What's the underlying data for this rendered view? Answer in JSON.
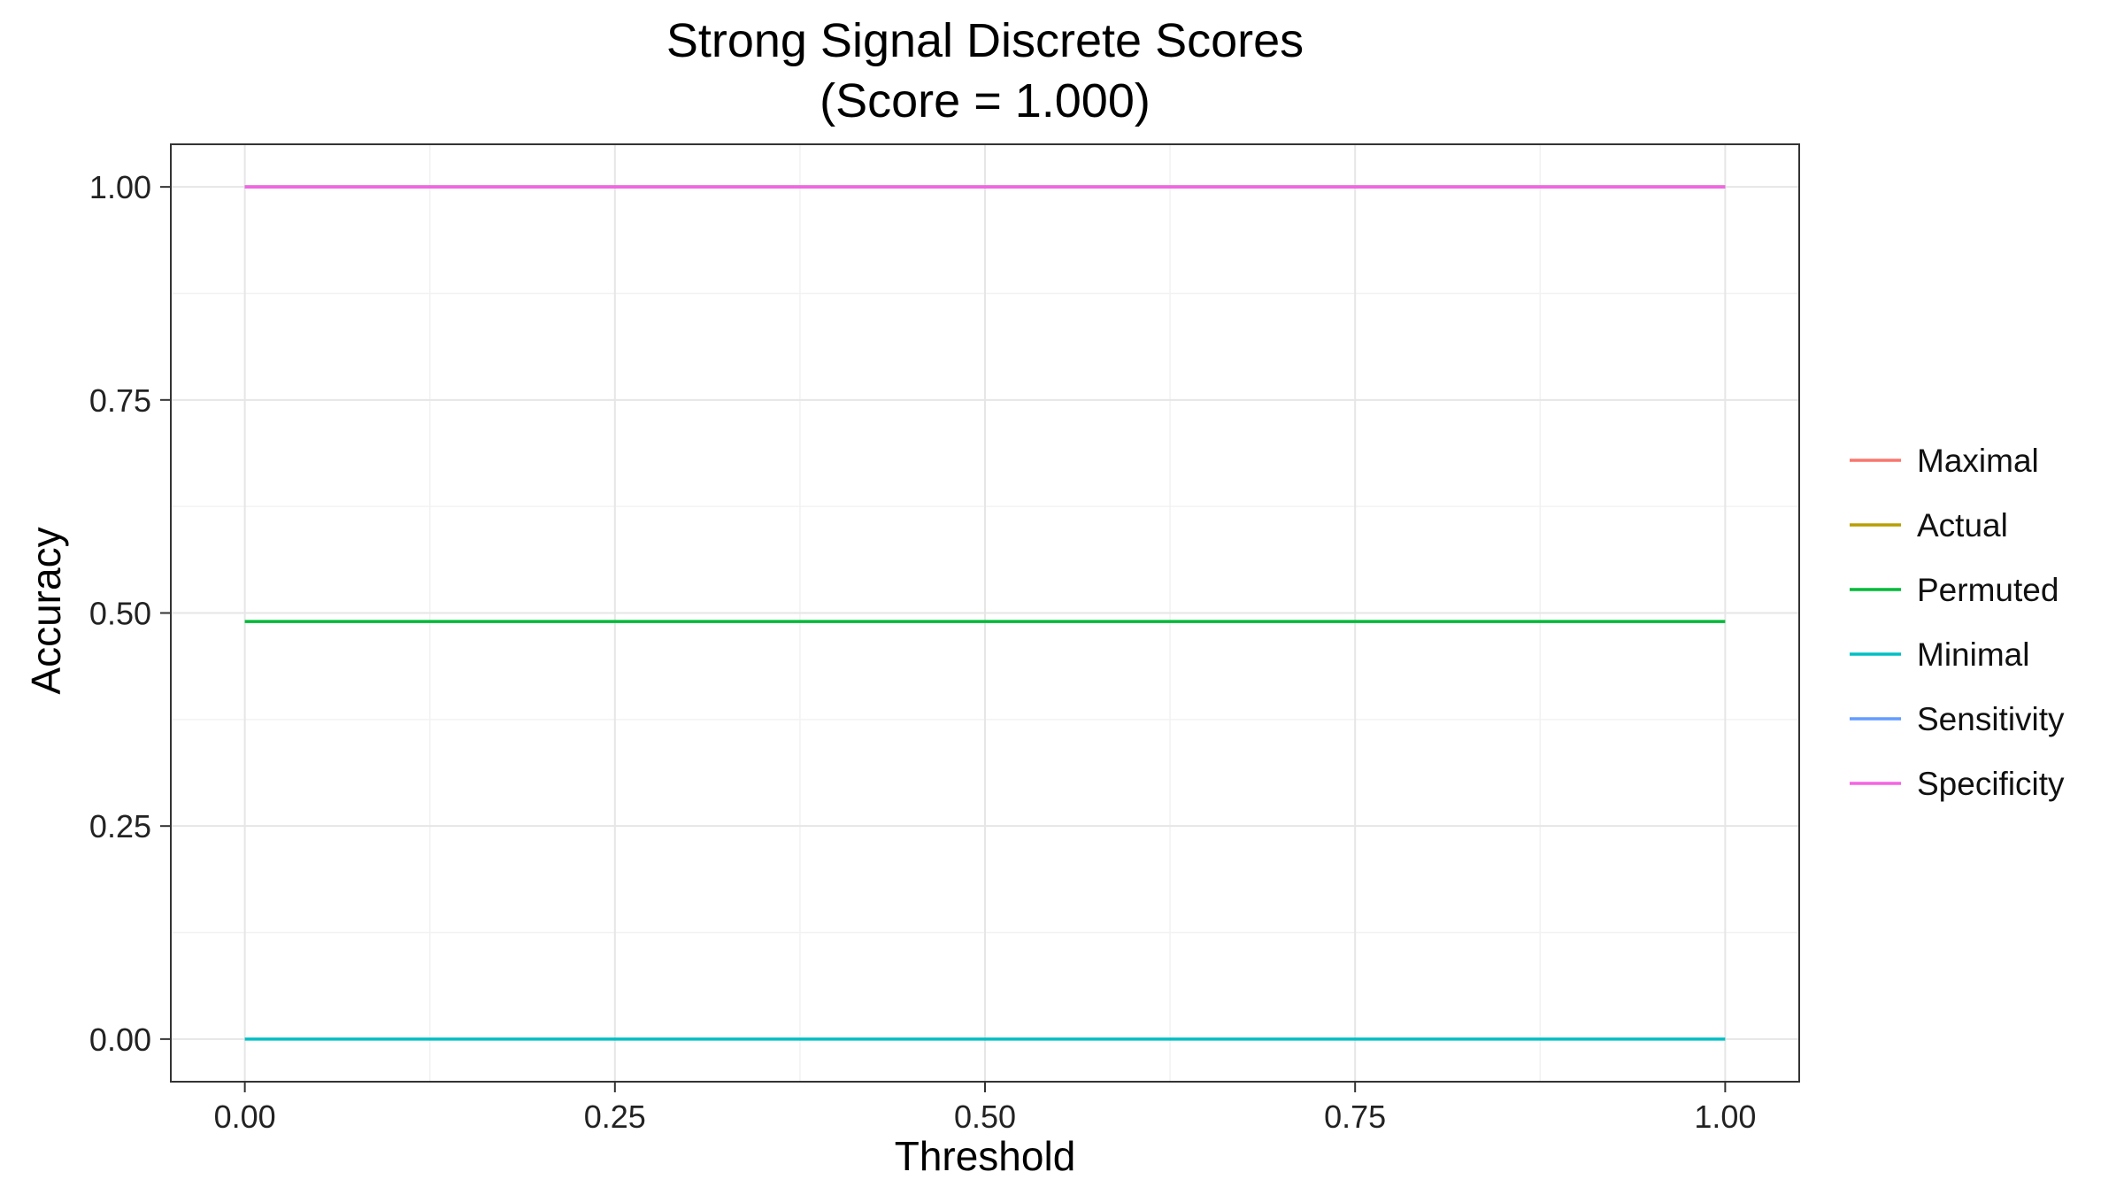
{
  "chart_data": {
    "type": "line",
    "title": "Strong Signal Discrete Scores",
    "subtitle": "(Score = 1.000)",
    "xlabel": "Threshold",
    "ylabel": "Accuracy",
    "xlim": [
      -0.05,
      1.05
    ],
    "ylim": [
      -0.05,
      1.05
    ],
    "x_ticks": [
      "0.00",
      "0.25",
      "0.50",
      "0.75",
      "1.00"
    ],
    "y_ticks": [
      "0.00",
      "0.25",
      "0.50",
      "0.75",
      "1.00"
    ],
    "grid": true,
    "legend_position": "right",
    "x": [
      0.0,
      1.0
    ],
    "series": [
      {
        "name": "Maximal",
        "color": "#F8766D",
        "values": [
          1.0,
          1.0
        ]
      },
      {
        "name": "Actual",
        "color": "#B79F00",
        "values": [
          1.0,
          1.0
        ]
      },
      {
        "name": "Permuted",
        "color": "#00BA38",
        "values": [
          0.49,
          0.49
        ]
      },
      {
        "name": "Minimal",
        "color": "#00BFC4",
        "values": [
          0.0,
          0.0
        ]
      },
      {
        "name": "Sensitivity",
        "color": "#619CFF",
        "values": [
          1.0,
          1.0
        ]
      },
      {
        "name": "Specificity",
        "color": "#F564E3",
        "values": [
          1.0,
          1.0
        ]
      }
    ]
  }
}
